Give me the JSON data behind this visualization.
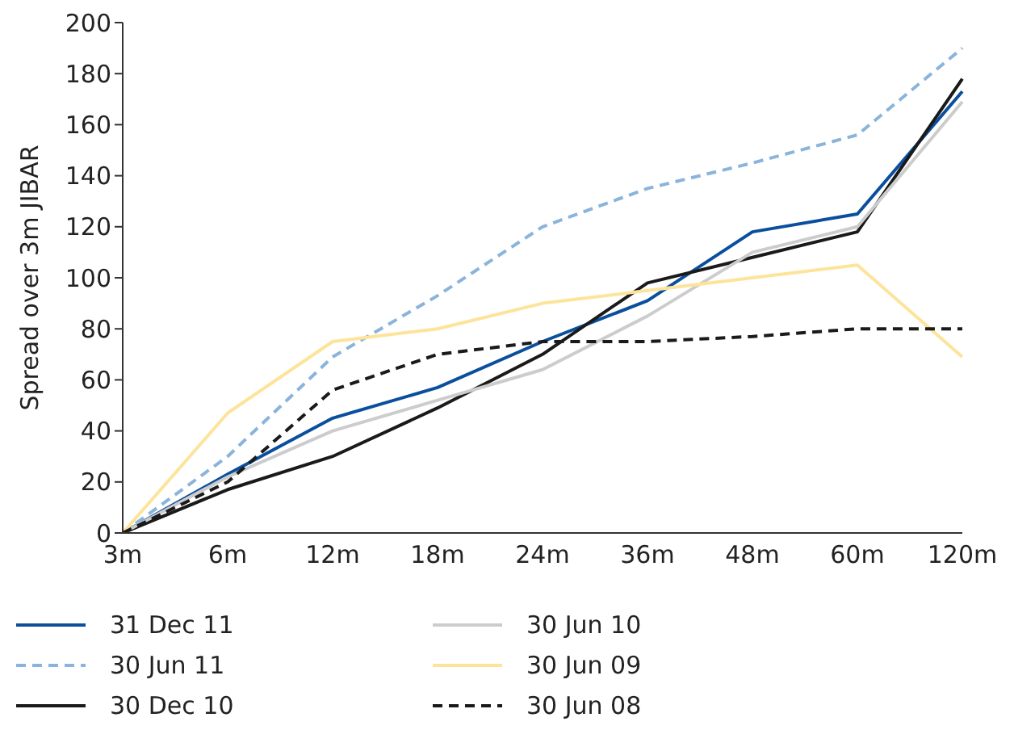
{
  "chart_data": {
    "type": "line",
    "ylabel": "Spread over 3m JIBAR",
    "categories": [
      "3m",
      "6m",
      "12m",
      "18m",
      "24m",
      "36m",
      "48m",
      "60m",
      "120m"
    ],
    "ylim": [
      0,
      200
    ],
    "yticks": [
      0,
      20,
      40,
      60,
      80,
      100,
      120,
      140,
      160,
      180,
      200
    ],
    "grid": false,
    "legend": "bottom",
    "marker": "none",
    "series": [
      {
        "name": "31 Dec 11",
        "color": "#0a4f9e",
        "line_style": "solid",
        "values": [
          0,
          23,
          45,
          57,
          75,
          91,
          118,
          125,
          173
        ]
      },
      {
        "name": "30 Jun 11",
        "color": "#8ab4dc",
        "line_style": "dashed",
        "values": [
          0,
          30,
          69,
          93,
          120,
          135,
          145,
          156,
          190
        ]
      },
      {
        "name": "30 Dec 10",
        "color": "#1a1a1a",
        "line_style": "solid",
        "values": [
          0,
          17,
          30,
          49,
          70,
          98,
          108,
          118,
          178
        ]
      },
      {
        "name": "30 Jun 10",
        "color": "#cccccc",
        "line_style": "solid",
        "values": [
          0,
          22,
          40,
          52,
          64,
          85,
          110,
          120,
          169
        ]
      },
      {
        "name": "30 Jun 09",
        "color": "#fde49a",
        "line_style": "solid",
        "values": [
          0,
          47,
          75,
          80,
          90,
          95,
          100,
          105,
          69
        ]
      },
      {
        "name": "30 Jun 08",
        "color": "#1a1a1a",
        "line_style": "dashed",
        "values": [
          0,
          20,
          56,
          70,
          75,
          75,
          77,
          80,
          80
        ]
      }
    ]
  }
}
